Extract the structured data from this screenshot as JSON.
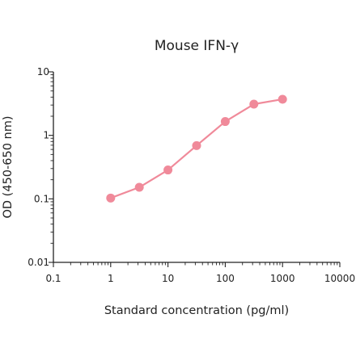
{
  "chart_data": {
    "type": "line",
    "title": "Mouse IFN-γ",
    "xlabel": "Standard concentration (pg/ml)",
    "ylabel": "OD (450-650 nm)",
    "xscale": "log",
    "yscale": "log",
    "xlim": [
      0.1,
      10000
    ],
    "ylim": [
      0.01,
      10
    ],
    "x_tick_labels": [
      "0.1",
      "1",
      "10",
      "100",
      "1000",
      "10000"
    ],
    "y_tick_labels": [
      "0.01",
      "0.1",
      "1",
      "10"
    ],
    "grid": false,
    "legend": "none",
    "series": [
      {
        "color": "#f08a9a",
        "x": [
          1,
          3.16,
          10,
          31.6,
          100,
          316,
          1000
        ],
        "y": [
          0.103,
          0.152,
          0.285,
          0.69,
          1.65,
          3.1,
          3.7
        ]
      }
    ]
  }
}
